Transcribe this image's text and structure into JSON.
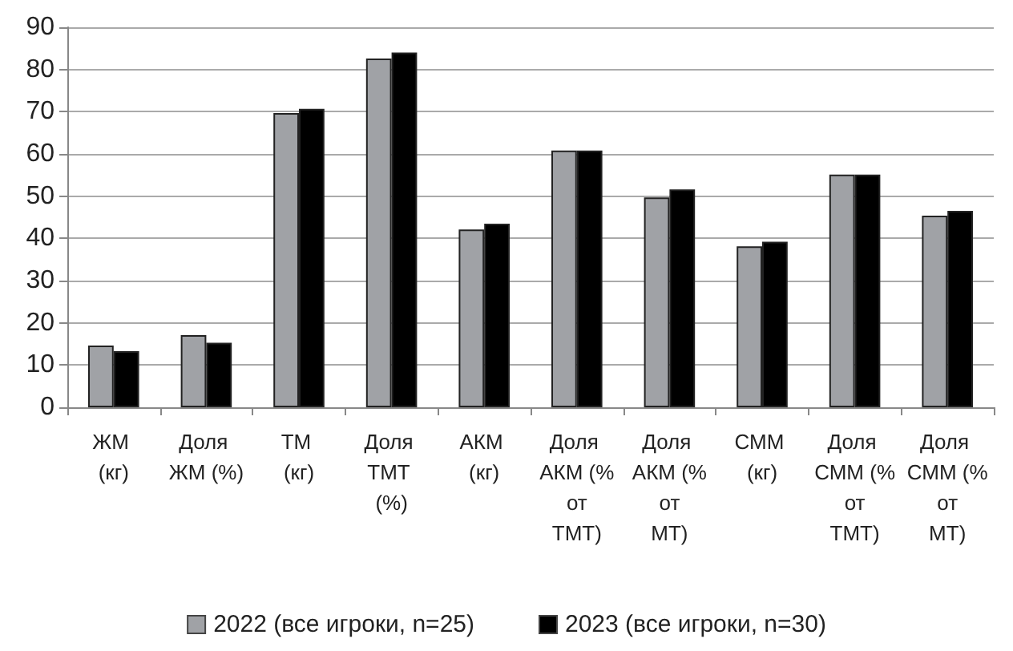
{
  "chart_data": {
    "type": "bar",
    "categories": [
      "ЖМ (кг)",
      "Доля ЖМ (%)",
      "ТМ (кг)",
      "Доля ТМТ (%)",
      "АКМ (кг)",
      "Доля АКМ (% от ТМТ)",
      "Доля АКМ (% от МТ)",
      "СММ (кг)",
      "Доля СММ (% от ТМТ)",
      "Доля СММ (% от МТ)"
    ],
    "series": [
      {
        "name": "2022 (все игроки, n=25)",
        "color": "#a0a2a6",
        "values": [
          14.6,
          17.1,
          69.7,
          82.6,
          42.1,
          60.8,
          49.7,
          38.1,
          55.1,
          45.4
        ]
      },
      {
        "name": "2023 (все игроки, n=30)",
        "color": "#000000",
        "values": [
          13.3,
          15.3,
          70.7,
          84.0,
          43.5,
          60.8,
          51.6,
          39.2,
          55.1,
          46.5
        ]
      }
    ],
    "ylim": [
      0,
      90
    ],
    "yticks": [
      0,
      10,
      20,
      30,
      40,
      50,
      60,
      70,
      80,
      90
    ],
    "grid": "y",
    "legend": "bottom"
  }
}
